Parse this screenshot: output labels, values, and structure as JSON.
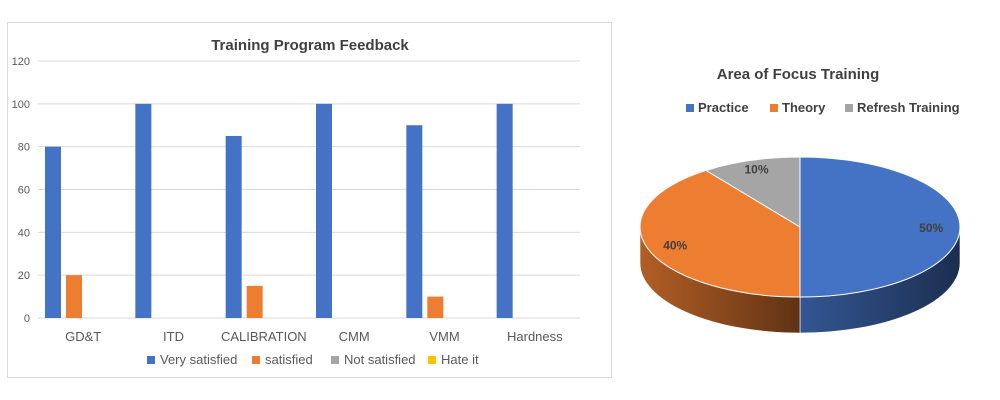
{
  "chart_data": [
    {
      "type": "bar",
      "title": "Training Program Feedback",
      "categories": [
        "GD&T",
        "ITD",
        "CALIBRATION",
        "CMM",
        "VMM",
        "Hardness"
      ],
      "series": [
        {
          "name": "Very satisfied",
          "color": "#4472c4",
          "values": [
            80,
            100,
            85,
            100,
            90,
            100
          ]
        },
        {
          "name": "satisfied",
          "color": "#ed7d31",
          "values": [
            20,
            0,
            15,
            0,
            10,
            0
          ]
        },
        {
          "name": "Not satisfied",
          "color": "#a5a5a5",
          "values": [
            0,
            0,
            0,
            0,
            0,
            0
          ]
        },
        {
          "name": "Hate it",
          "color": "#ffc000",
          "values": [
            0,
            0,
            0,
            0,
            0,
            0
          ]
        }
      ],
      "ylim": [
        0,
        120
      ],
      "yticks": [
        0,
        20,
        40,
        60,
        80,
        100,
        120
      ],
      "grid": true,
      "legend": "bottom"
    },
    {
      "type": "pie",
      "title": "Area of Focus Training",
      "labels": [
        "Practice",
        "Theory",
        "Refresh Training"
      ],
      "values": [
        50,
        40,
        10
      ],
      "data_labels": [
        "50%",
        "40%",
        "10%"
      ],
      "colors": [
        "#4472c4",
        "#ed7d31",
        "#a5a5a5"
      ],
      "style": "3d",
      "legend": "top"
    }
  ]
}
